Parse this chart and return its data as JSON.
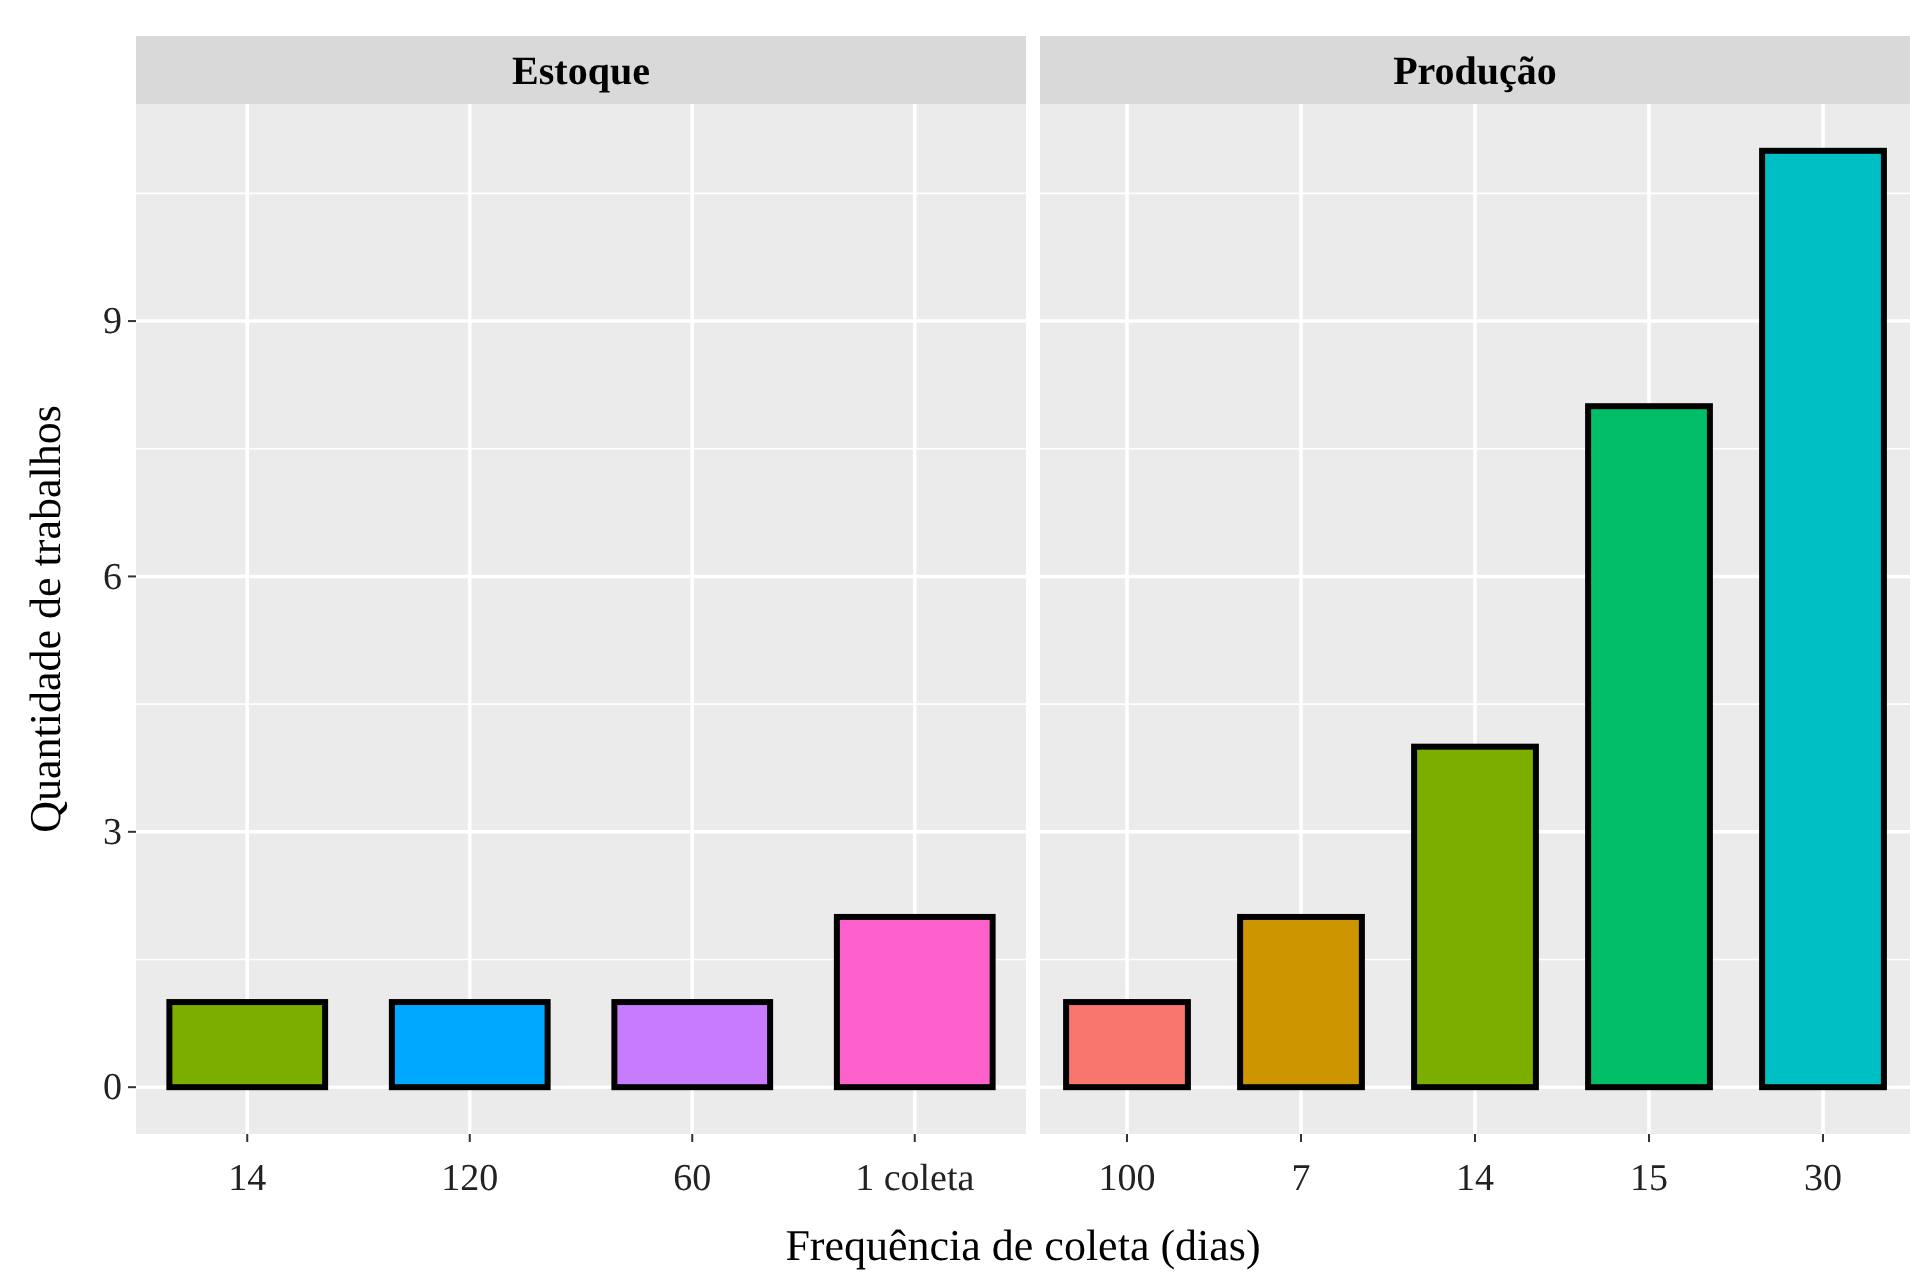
{
  "chart_data": [
    {
      "type": "bar",
      "title": "Estoque",
      "categories": [
        "14",
        "120",
        "60",
        "1 coleta"
      ],
      "values": [
        1,
        1,
        1,
        2
      ],
      "colors": [
        "#7cae00",
        "#00a9ff",
        "#c77cff",
        "#ff61cc"
      ],
      "ylim": [
        -0.55,
        11.55
      ],
      "yticks": [
        0,
        3,
        6,
        9
      ],
      "grid": true,
      "xlabel": "Frequência de coleta (dias)",
      "ylabel": "Quantidade de trabalhos"
    },
    {
      "type": "bar",
      "title": "Produção",
      "categories": [
        "100",
        "7",
        "14",
        "15",
        "30"
      ],
      "values": [
        1,
        2,
        4,
        8,
        11
      ],
      "colors": [
        "#f8766d",
        "#cd9600",
        "#7cae00",
        "#00be67",
        "#00bfc4"
      ],
      "ylim": [
        -0.55,
        11.55
      ],
      "yticks": [
        0,
        3,
        6,
        9
      ],
      "grid": true,
      "tick_labels": "x"
    }
  ]
}
